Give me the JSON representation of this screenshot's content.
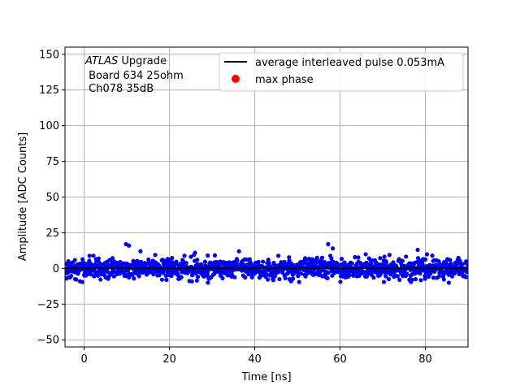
{
  "chart_data": {
    "type": "scatter",
    "xlabel": "Time [ns]",
    "ylabel": "Amplitude [ADC Counts]",
    "xlim": [
      -4.5,
      90
    ],
    "ylim": [
      -55,
      155
    ],
    "xticks": [
      0,
      20,
      40,
      60,
      80
    ],
    "yticks": [
      -50,
      -25,
      0,
      25,
      50,
      75,
      100,
      125,
      150
    ],
    "grid": true,
    "legend_position": "top-right",
    "annotation": {
      "italic_part": "ATLAS",
      "line1_rest": " Upgrade",
      "line2": " Board 634 25ohm",
      "line3": " Ch078 35dB"
    },
    "series": [
      {
        "name": "average interleaved pulse 0.053mA",
        "kind": "line",
        "color": "#000000",
        "x": [
          -4.5,
          90
        ],
        "y": [
          0.3,
          0.3
        ]
      },
      {
        "name": "max phase",
        "kind": "marker",
        "color": "#ff0000",
        "x": [],
        "y": []
      },
      {
        "name": "",
        "kind": "scatter",
        "color": "#0000ff",
        "x_range": [
          -4.5,
          90
        ],
        "num_points": 1300,
        "y_mean": 0,
        "y_std": 3.5,
        "y_extremes": [
          {
            "x": 9.8,
            "y": 17
          },
          {
            "x": 10.5,
            "y": 16
          },
          {
            "x": 57.2,
            "y": 17
          },
          {
            "x": 58.3,
            "y": 14
          },
          {
            "x": 78.2,
            "y": 13
          },
          {
            "x": 13.2,
            "y": 12
          },
          {
            "x": 36.3,
            "y": 12
          },
          {
            "x": 26.0,
            "y": 11
          },
          {
            "x": 29.0,
            "y": -10
          },
          {
            "x": -1.0,
            "y": -9
          },
          {
            "x": 85.5,
            "y": -10
          },
          {
            "x": 48.5,
            "y": -9
          }
        ]
      }
    ]
  }
}
